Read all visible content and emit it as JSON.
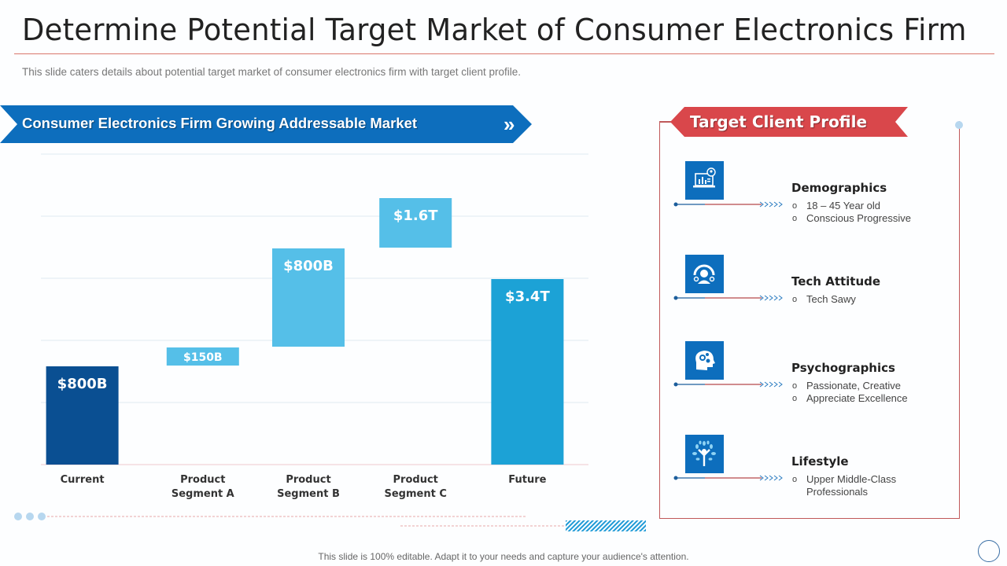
{
  "header": {
    "title": "Determine Potential Target Market of Consumer Electronics Firm",
    "subtitle": "This slide caters details about potential target market of consumer electronics firm with target client profile."
  },
  "chart_section": {
    "banner_title": "Consumer Electronics Firm Growing Addressable Market",
    "banner_icon": "double-chevron-right-icon"
  },
  "chart_data": {
    "type": "bar",
    "subtype": "waterfall",
    "title": "Consumer Electronics Firm Growing Addressable Market",
    "categories": [
      "Current",
      "Product Segment A",
      "Product Segment B",
      "Product Segment C",
      "Future"
    ],
    "category_lines": [
      [
        "Current"
      ],
      [
        "Product",
        "Segment A"
      ],
      [
        "Product",
        "Segment B"
      ],
      [
        "Product",
        "Segment C"
      ],
      [
        "Future"
      ]
    ],
    "values_usd_billion": [
      800,
      150,
      800,
      1600,
      3400
    ],
    "data_labels": [
      "$800B",
      "$150B",
      "$800B",
      "$1.6T",
      "$3.4T"
    ],
    "bar_kind": [
      "total",
      "increment",
      "increment",
      "increment",
      "total"
    ],
    "colors": {
      "current": "#0a4f92",
      "increment": "#55bfe8",
      "future": "#1ca2d6"
    },
    "xlabel": "",
    "ylabel": "",
    "grid": true,
    "legend": "none"
  },
  "profile": {
    "title": "Target Client Profile",
    "items": [
      {
        "heading": "Demographics",
        "icon": "laptop-analytics-user-icon",
        "bullets": [
          "18 – 45 Year old",
          "Conscious Progressive"
        ]
      },
      {
        "heading": "Tech Attitude",
        "icon": "tech-user-dashboard-icon",
        "bullets": [
          "Tech Sawy"
        ]
      },
      {
        "heading": "Psychographics",
        "icon": "head-gears-icon",
        "bullets": [
          "Passionate, Creative",
          "Appreciate Excellence"
        ]
      },
      {
        "heading": "Lifestyle",
        "icon": "tree-person-icon",
        "bullets": [
          "Upper Middle-Class Professionals"
        ]
      }
    ],
    "bullet_marker": "o"
  },
  "footer": {
    "note": "This slide is 100% editable. Adapt it to your needs and capture your audience's attention."
  },
  "colors": {
    "accent_red": "#d9474b",
    "accent_blue": "#0d6ebd"
  }
}
